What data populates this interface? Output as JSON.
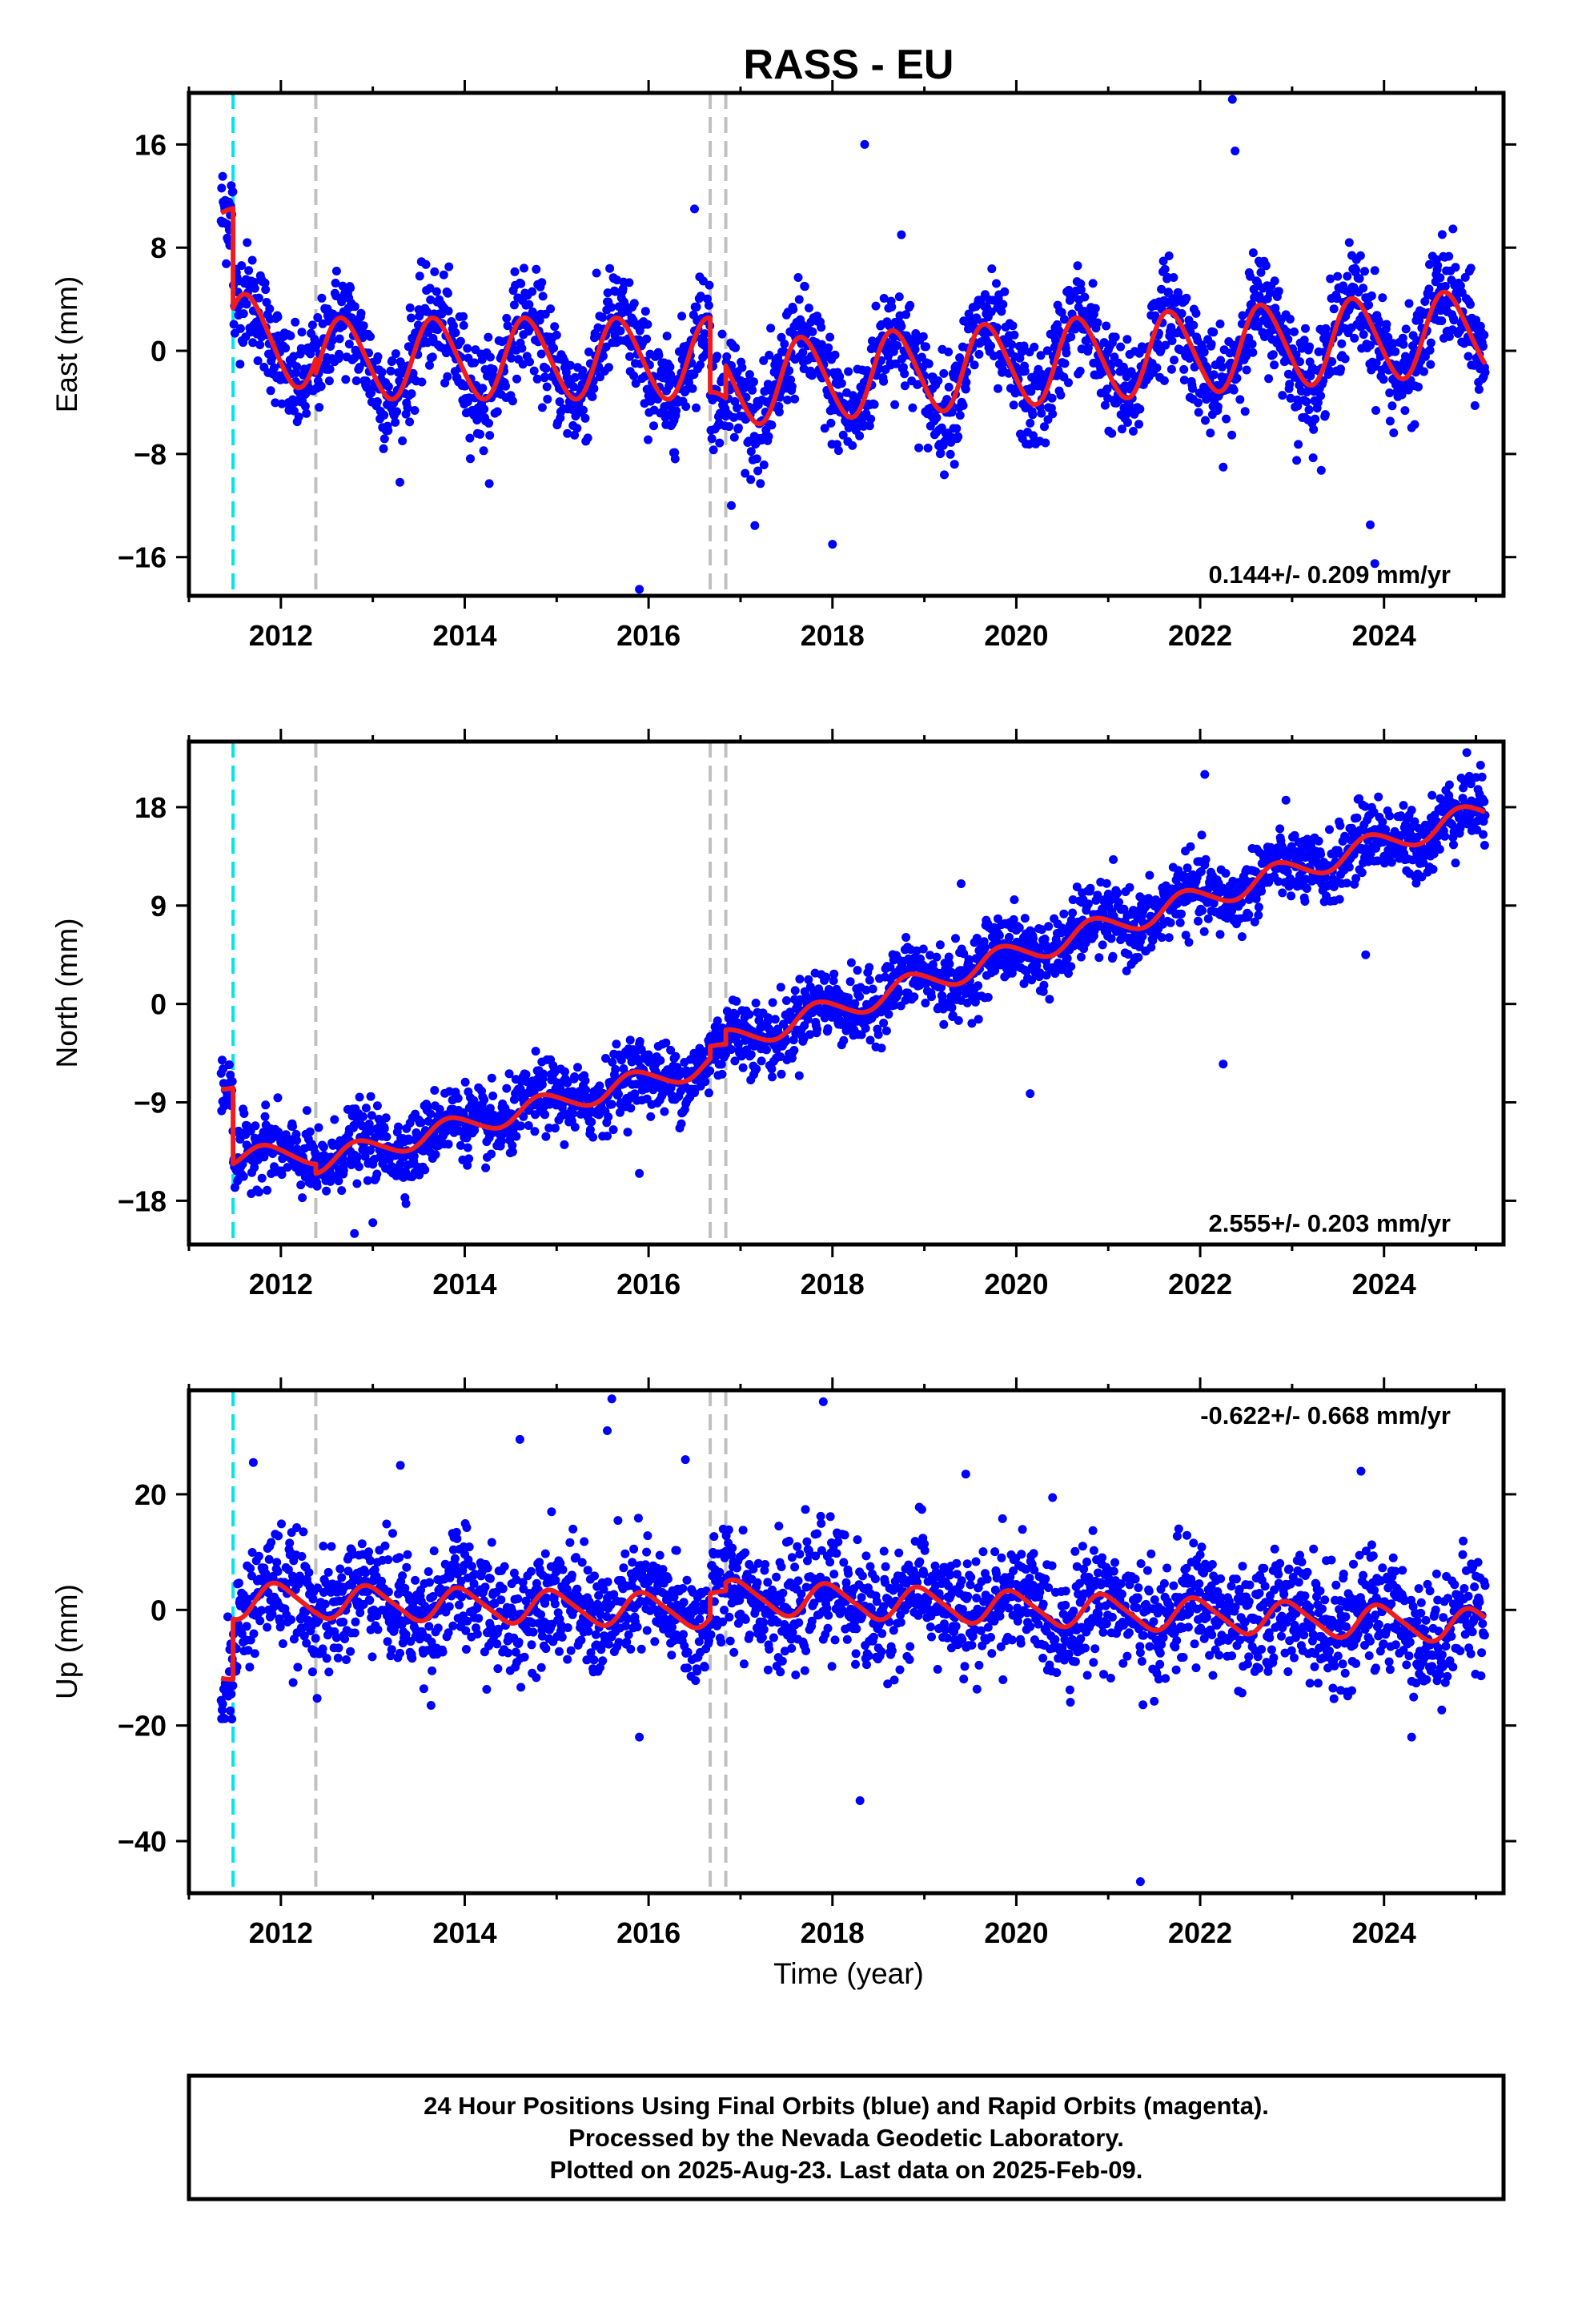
{
  "title": "RASS - EU",
  "xlabel": "Time (year)",
  "footer": {
    "lines": [
      "24 Hour Positions Using Final Orbits (blue) and Rapid Orbits (magenta).",
      "Processed by the Nevada Geodetic Laboratory.",
      "Plotted on 2025-Aug-23. Last data on 2025-Feb-09."
    ]
  },
  "colors": {
    "points": "#0000ff",
    "model": "#ee1c1c",
    "antenna_change": "#00e5ee",
    "other_event": "#c0c0c0",
    "frame": "#000000"
  },
  "chart_data": [
    {
      "type": "scatter",
      "component": "East",
      "ylabel": "East (mm)",
      "xlim": [
        2011.0,
        2025.3
      ],
      "ylim": [
        -19,
        20
      ],
      "xticks": [
        2012,
        2014,
        2016,
        2018,
        2020,
        2022,
        2024
      ],
      "xtick_labels": [
        "2012",
        "2014",
        "2016",
        "2018",
        "2020",
        "2022",
        "2024"
      ],
      "yticks": [
        -16,
        -8,
        0,
        8,
        16
      ],
      "ytick_labels": [
        "−16",
        "−8",
        "0",
        "8",
        "16"
      ],
      "rate_text": "0.144+/- 0.209 mm/yr",
      "rate_position": "bottom-right",
      "grid": false,
      "events": [
        {
          "x": 2011.48,
          "kind": "antenna_change"
        },
        {
          "x": 2012.38,
          "kind": "other_event"
        },
        {
          "x": 2016.67,
          "kind": "other_event"
        },
        {
          "x": 2016.84,
          "kind": "other_event"
        }
      ],
      "model_segments": [
        {
          "x_start": 2011.35,
          "x_end": 2011.48,
          "offset": 10.5,
          "trend": 0.0,
          "annual_amp": 0.6,
          "annual_phase": 0.3,
          "semi_amp": 0.0
        },
        {
          "x_start": 2011.48,
          "x_end": 2012.38,
          "offset": 1.6,
          "trend": -2.0,
          "annual_amp": 3.0,
          "annual_phase": 0.4,
          "semi_amp": 0.3
        },
        {
          "x_start": 2012.38,
          "x_end": 2016.67,
          "offset": -0.6,
          "trend": 0.0,
          "annual_amp": 3.1,
          "annual_phase": 0.43,
          "semi_amp": 0.3
        },
        {
          "x_start": 2016.67,
          "x_end": 2016.84,
          "offset": -4.2,
          "trend": 0.0,
          "annual_amp": 1.0,
          "annual_phase": 0.43,
          "semi_amp": 0.0
        },
        {
          "x_start": 2016.84,
          "x_end": 2025.1,
          "offset": -2.6,
          "trend": 0.5,
          "annual_amp": 3.2,
          "annual_phase": 0.43,
          "semi_amp": 0.3
        }
      ],
      "scatter": {
        "sigma": 2.0,
        "outliers": [
          [
            2022.35,
            19.5
          ],
          [
            2022.38,
            15.5
          ],
          [
            2018.35,
            16.0
          ],
          [
            2016.9,
            -12.0
          ],
          [
            2018.0,
            -15.0
          ],
          [
            2023.85,
            -13.5
          ],
          [
            2023.9,
            -16.5
          ],
          [
            2015.9,
            -18.5
          ],
          [
            2016.5,
            11.0
          ],
          [
            2017.05,
            -9.5
          ],
          [
            2018.75,
            9.0
          ],
          [
            2023.05,
            -8.5
          ]
        ]
      }
    },
    {
      "type": "scatter",
      "component": "North",
      "ylabel": "North (mm)",
      "xlim": [
        2011.0,
        2025.3
      ],
      "ylim": [
        -22,
        24
      ],
      "xticks": [
        2012,
        2014,
        2016,
        2018,
        2020,
        2022,
        2024
      ],
      "xtick_labels": [
        "2012",
        "2014",
        "2016",
        "2018",
        "2020",
        "2022",
        "2024"
      ],
      "yticks": [
        -18,
        -9,
        0,
        9,
        18
      ],
      "ytick_labels": [
        "−18",
        "−9",
        "0",
        "9",
        "18"
      ],
      "rate_text": "2.555+/- 0.203 mm/yr",
      "rate_position": "bottom-right",
      "grid": false,
      "events": [
        {
          "x": 2011.48,
          "kind": "antenna_change"
        },
        {
          "x": 2012.38,
          "kind": "other_event"
        },
        {
          "x": 2016.67,
          "kind": "other_event"
        },
        {
          "x": 2016.84,
          "kind": "other_event"
        }
      ],
      "model_segments": [
        {
          "x_start": 2011.35,
          "x_end": 2011.48,
          "offset": -7.4,
          "trend": 0.0,
          "annual_amp": 0.4,
          "annual_phase": 0.6,
          "semi_amp": 0.0
        },
        {
          "x_start": 2011.48,
          "x_end": 2012.38,
          "offset": -13.9,
          "trend": 0.2,
          "annual_amp": 0.9,
          "annual_phase": 0.6,
          "semi_amp": 0.1
        },
        {
          "x_start": 2012.38,
          "x_end": 2016.67,
          "offset": -14.5,
          "trend": 2.1,
          "annual_amp": 1.0,
          "annual_phase": 0.6,
          "semi_amp": 0.1
        },
        {
          "x_start": 2016.67,
          "x_end": 2016.84,
          "offset": -4.0,
          "trend": 0.0,
          "annual_amp": 0.3,
          "annual_phase": 0.6,
          "semi_amp": 0.0
        },
        {
          "x_start": 2016.84,
          "x_end": 2025.1,
          "offset": -3.5,
          "trend": 2.55,
          "annual_amp": 1.1,
          "annual_phase": 0.6,
          "semi_amp": 0.1
        }
      ],
      "scatter": {
        "sigma": 1.6,
        "outliers": [
          [
            2022.05,
            21.0
          ],
          [
            2022.25,
            -5.5
          ],
          [
            2020.15,
            -8.2
          ],
          [
            2012.8,
            -21.0
          ],
          [
            2013.0,
            -20.0
          ],
          [
            2024.9,
            23.0
          ],
          [
            2023.8,
            4.5
          ],
          [
            2015.9,
            -15.5
          ],
          [
            2019.4,
            11.0
          ]
        ]
      }
    },
    {
      "type": "scatter",
      "component": "Up",
      "ylabel": "Up (mm)",
      "xlim": [
        2011.0,
        2025.3
      ],
      "ylim": [
        -49,
        38
      ],
      "xticks": [
        2012,
        2014,
        2016,
        2018,
        2020,
        2022,
        2024
      ],
      "xtick_labels": [
        "2012",
        "2014",
        "2016",
        "2018",
        "2020",
        "2022",
        "2024"
      ],
      "yticks": [
        -40,
        -20,
        0,
        20
      ],
      "ytick_labels": [
        "−40",
        "−20",
        "0",
        "20"
      ],
      "rate_text": "-0.622+/- 0.668 mm/yr",
      "rate_position": "top-right",
      "grid": false,
      "events": [
        {
          "x": 2011.48,
          "kind": "antenna_change"
        },
        {
          "x": 2012.38,
          "kind": "other_event"
        },
        {
          "x": 2016.67,
          "kind": "other_event"
        },
        {
          "x": 2016.84,
          "kind": "other_event"
        }
      ],
      "model_segments": [
        {
          "x_start": 2011.35,
          "x_end": 2011.48,
          "offset": -11.0,
          "trend": 0.0,
          "annual_amp": 1.0,
          "annual_phase": 0.7,
          "semi_amp": 0.0
        },
        {
          "x_start": 2011.48,
          "x_end": 2012.38,
          "offset": 1.5,
          "trend": 0.0,
          "annual_amp": 3.0,
          "annual_phase": 0.72,
          "semi_amp": 0.5
        },
        {
          "x_start": 2012.38,
          "x_end": 2016.67,
          "offset": 1.5,
          "trend": -0.4,
          "annual_amp": 2.8,
          "annual_phase": 0.72,
          "semi_amp": 0.5
        },
        {
          "x_start": 2016.67,
          "x_end": 2016.84,
          "offset": 3.0,
          "trend": 0.0,
          "annual_amp": 0.5,
          "annual_phase": 0.72,
          "semi_amp": 0.0
        },
        {
          "x_start": 2016.84,
          "x_end": 2025.1,
          "offset": 2.3,
          "trend": -0.62,
          "annual_amp": 2.8,
          "annual_phase": 0.72,
          "semi_amp": 0.5
        }
      ],
      "scatter": {
        "sigma": 5.0,
        "outliers": [
          [
            2018.3,
            -33.0
          ],
          [
            2021.35,
            -47.0
          ],
          [
            2015.6,
            36.5
          ],
          [
            2017.9,
            36.0
          ],
          [
            2015.55,
            31.0
          ],
          [
            2014.6,
            29.5
          ],
          [
            2016.4,
            26.0
          ],
          [
            2024.3,
            -22.0
          ],
          [
            2015.9,
            -22.0
          ],
          [
            2011.7,
            25.5
          ],
          [
            2013.3,
            25.0
          ],
          [
            2019.45,
            23.5
          ],
          [
            2023.75,
            24.0
          ]
        ]
      }
    }
  ]
}
